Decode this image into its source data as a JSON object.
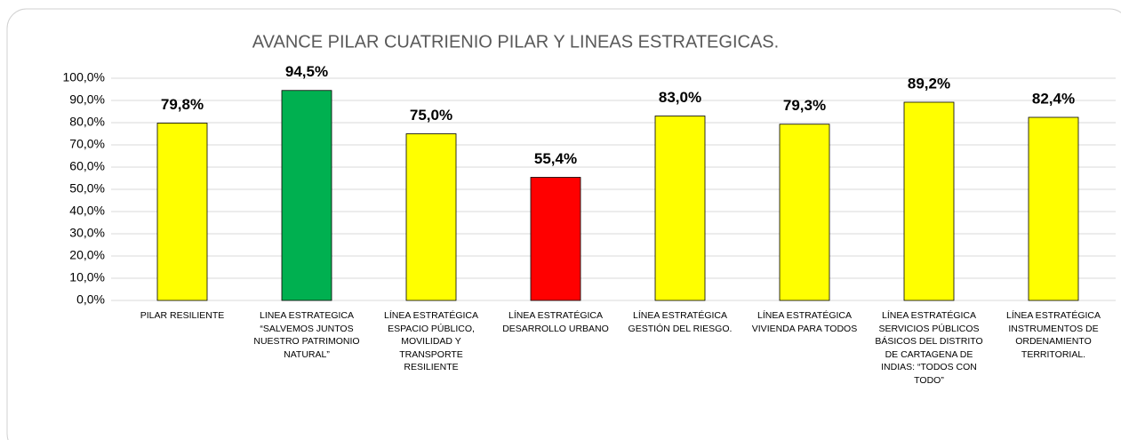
{
  "chart_data": {
    "type": "bar",
    "title": "AVANCE PILAR CUATRIENIO PILAR Y LINEAS ESTRATEGICAS.",
    "categories": [
      "PILAR RESILIENTE",
      "LINEA ESTRATEGICA “SALVEMOS JUNTOS NUESTRO PATRIMONIO NATURAL”",
      "LÍNEA ESTRATÉGICA ESPACIO PÚBLICO, MOVILIDAD Y TRANSPORTE RESILIENTE",
      "LÍNEA ESTRATÉGICA DESARROLLO URBANO",
      "LÍNEA ESTRATÉGICA GESTIÓN DEL RIESGO.",
      "LÍNEA ESTRATÉGICA VIVIENDA  PARA TODOS",
      "LÍNEA ESTRATÉGICA SERVICIOS PÚBLICOS BÁSICOS DEL DISTRITO DE CARTAGENA DE INDIAS: “TODOS CON TODO”",
      "LÍNEA ESTRATÉGICA INSTRUMENTOS DE ORDENAMIENTO TERRITORIAL."
    ],
    "values": [
      79.8,
      94.5,
      75.0,
      55.4,
      83.0,
      79.3,
      89.2,
      82.4
    ],
    "value_labels": [
      "79,8%",
      "94,5%",
      "75,0%",
      "55,4%",
      "83,0%",
      "79,3%",
      "89,2%",
      "82,4%"
    ],
    "colors": [
      "#ffff00",
      "#00b050",
      "#ffff00",
      "#ff0000",
      "#ffff00",
      "#ffff00",
      "#ffff00",
      "#ffff00"
    ],
    "ylim": [
      0,
      100
    ],
    "yticks": [
      {
        "value": 0,
        "label": "0,0%"
      },
      {
        "value": 10,
        "label": "10,0%"
      },
      {
        "value": 20,
        "label": "20,0%"
      },
      {
        "value": 30,
        "label": "30,0%"
      },
      {
        "value": 40,
        "label": "40,0%"
      },
      {
        "value": 50,
        "label": "50,0%"
      },
      {
        "value": 60,
        "label": "60,0%"
      },
      {
        "value": 70,
        "label": "70,0%"
      },
      {
        "value": 80,
        "label": "80,0%"
      },
      {
        "value": 90,
        "label": "90,0%"
      },
      {
        "value": 100,
        "label": "100,0%"
      }
    ],
    "grid": true
  }
}
